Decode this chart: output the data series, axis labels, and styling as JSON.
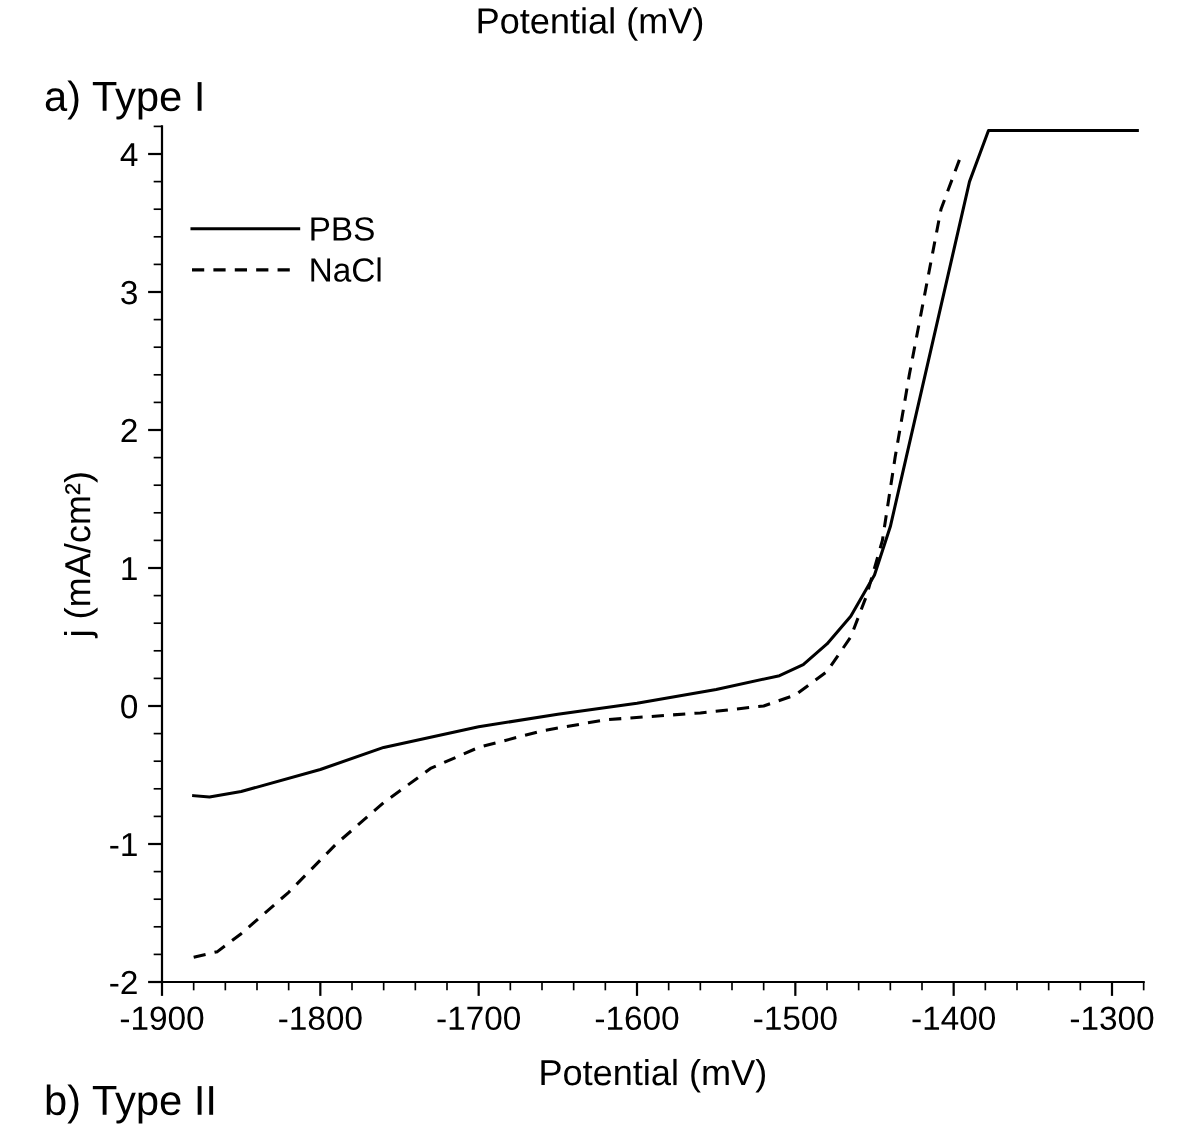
{
  "chart_data": {
    "type": "line",
    "title": "a) Type I",
    "xlabel": "Potential (mV)",
    "ylabel": "j (mA/cm²)",
    "annotations": [
      "Potential (mV)",
      "b) Type II"
    ],
    "xlim": [
      -1900,
      -1280
    ],
    "xticks": [
      -1900,
      -1800,
      -1700,
      -1600,
      -1500,
      -1400,
      -1300
    ],
    "ylim": [
      -2,
      4.2
    ],
    "yticks": [
      -2,
      -1,
      0,
      1,
      2,
      3,
      4
    ],
    "grid": false,
    "legend": "top left",
    "marker": "none",
    "series": [
      {
        "name": "PBS",
        "color": "#000000",
        "line_style": "solid",
        "x": [
          -1880,
          -1870,
          -1850,
          -1800,
          -1760,
          -1700,
          -1650,
          -1600,
          -1550,
          -1510,
          -1495,
          -1480,
          -1465,
          -1450,
          -1440,
          -1430,
          -1420,
          -1410,
          -1400,
          -1390,
          -1378,
          -1284
        ],
        "values": [
          -0.65,
          -0.66,
          -0.62,
          -0.46,
          -0.3,
          -0.15,
          -0.06,
          0.02,
          0.12,
          0.22,
          0.3,
          0.45,
          0.65,
          0.95,
          1.3,
          1.8,
          2.3,
          2.8,
          3.3,
          3.8,
          4.17,
          4.17
        ]
      },
      {
        "name": "NaCl",
        "color": "#000000",
        "line_style": "dashed",
        "x": [
          -1880,
          -1865,
          -1850,
          -1820,
          -1790,
          -1760,
          -1730,
          -1700,
          -1660,
          -1620,
          -1560,
          -1520,
          -1500,
          -1480,
          -1465,
          -1455,
          -1445,
          -1437,
          -1428,
          -1418,
          -1408,
          -1395
        ],
        "values": [
          -1.82,
          -1.78,
          -1.65,
          -1.35,
          -1.0,
          -0.7,
          -0.45,
          -0.3,
          -0.18,
          -0.1,
          -0.05,
          0.0,
          0.08,
          0.25,
          0.5,
          0.8,
          1.2,
          1.8,
          2.4,
          3.0,
          3.6,
          4.0
        ]
      }
    ]
  }
}
